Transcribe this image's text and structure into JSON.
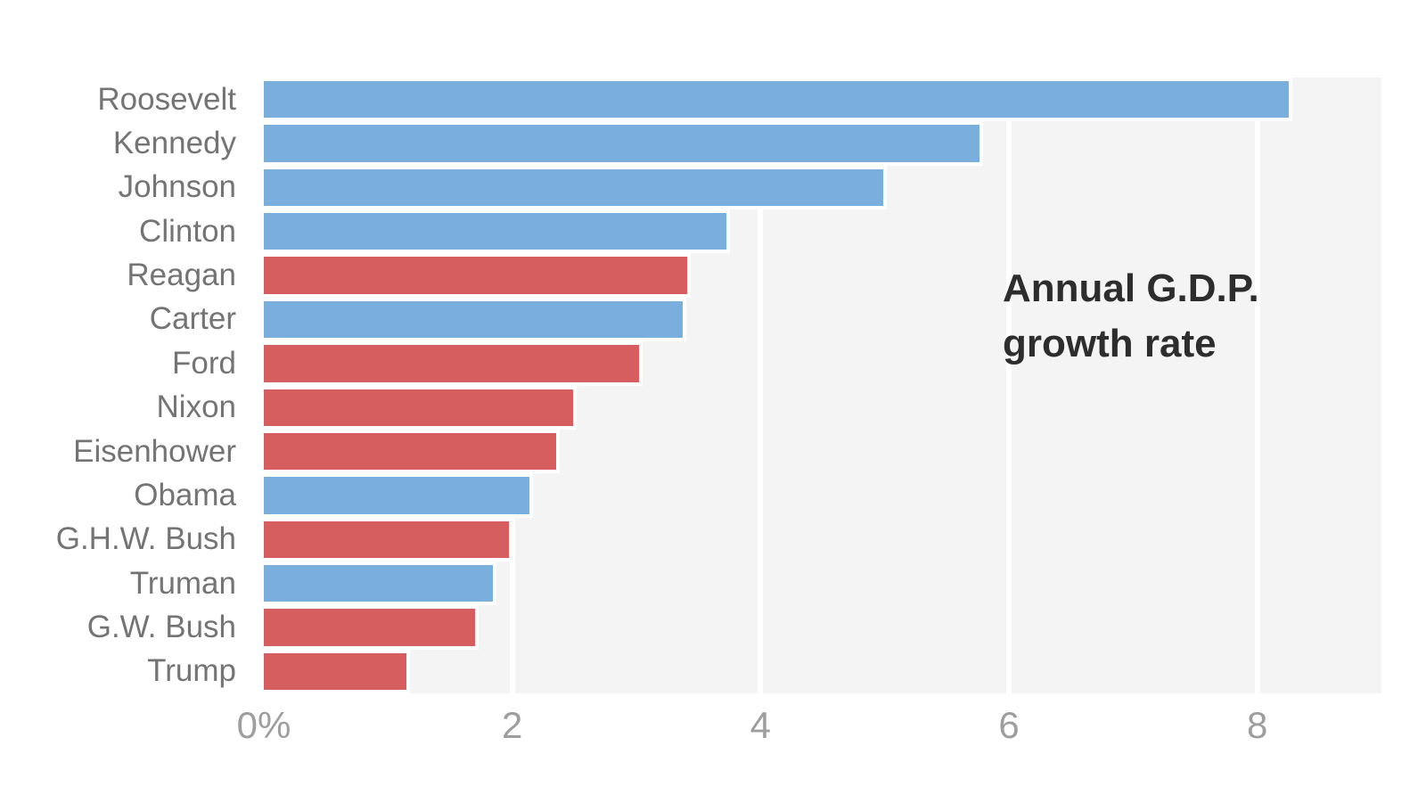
{
  "chart_data": {
    "type": "bar",
    "orientation": "horizontal",
    "title": "Annual G.D.P. growth rate",
    "title_line1": "Annual G.D.P.",
    "title_line2": "growth rate",
    "categories": [
      "Roosevelt",
      "Kennedy",
      "Johnson",
      "Clinton",
      "Reagan",
      "Carter",
      "Ford",
      "Nixon",
      "Eisenhower",
      "Obama",
      "G.H.W. Bush",
      "Truman",
      "G.W. Bush",
      "Trump"
    ],
    "values": [
      8.28,
      5.79,
      5.02,
      3.75,
      3.44,
      3.4,
      3.05,
      2.52,
      2.38,
      2.17,
      2.0,
      1.87,
      1.73,
      1.18
    ],
    "series": [
      {
        "name": "Roosevelt",
        "party": "Democrat",
        "value": 8.28
      },
      {
        "name": "Kennedy",
        "party": "Democrat",
        "value": 5.79
      },
      {
        "name": "Johnson",
        "party": "Democrat",
        "value": 5.02
      },
      {
        "name": "Clinton",
        "party": "Democrat",
        "value": 3.75
      },
      {
        "name": "Reagan",
        "party": "Republican",
        "value": 3.44
      },
      {
        "name": "Carter",
        "party": "Democrat",
        "value": 3.4
      },
      {
        "name": "Ford",
        "party": "Republican",
        "value": 3.05
      },
      {
        "name": "Nixon",
        "party": "Republican",
        "value": 2.52
      },
      {
        "name": "Eisenhower",
        "party": "Republican",
        "value": 2.38
      },
      {
        "name": "Obama",
        "party": "Democrat",
        "value": 2.17
      },
      {
        "name": "G.H.W. Bush",
        "party": "Republican",
        "value": 2.0
      },
      {
        "name": "Truman",
        "party": "Democrat",
        "value": 1.87
      },
      {
        "name": "G.W. Bush",
        "party": "Republican",
        "value": 1.73
      },
      {
        "name": "Trump",
        "party": "Republican",
        "value": 1.18
      }
    ],
    "x_ticks": [
      {
        "label": "0%",
        "value": 0
      },
      {
        "label": "2",
        "value": 2
      },
      {
        "label": "4",
        "value": 4
      },
      {
        "label": "6",
        "value": 6
      },
      {
        "label": "8",
        "value": 8
      }
    ],
    "xlim": [
      0,
      9
    ],
    "gridline_values": [
      2,
      4,
      6,
      8
    ],
    "grid": true,
    "legend": "none",
    "colors": {
      "democrat_bar": "#7aaedc",
      "republican_bar": "#d65e5e",
      "plot_background": "#f4f4f4",
      "gridline": "#ffffff",
      "label_text": "#747474",
      "tick_text": "#9e9e9e",
      "title_text": "#2d2d2d",
      "page_background": "#ffffff"
    }
  }
}
